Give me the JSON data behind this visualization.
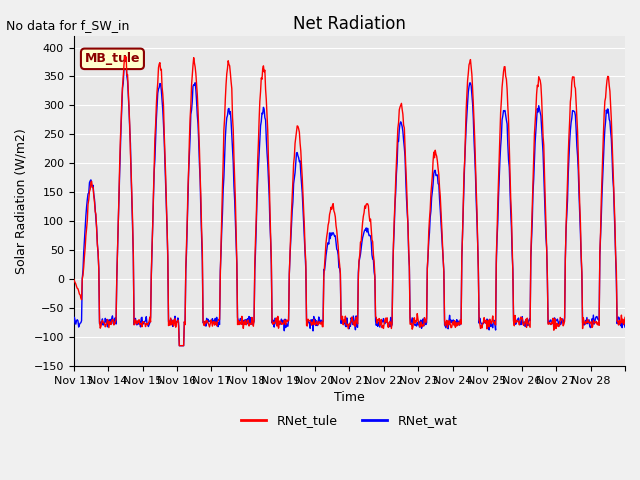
{
  "title": "Net Radiation",
  "subtitle": "No data for f_SW_in",
  "ylabel": "Solar Radiation (W/m2)",
  "xlabel": "Time",
  "ylim": [
    -150,
    420
  ],
  "yticks": [
    -150,
    -100,
    -50,
    0,
    50,
    100,
    150,
    200,
    250,
    300,
    350,
    400
  ],
  "date_start": 13,
  "date_end": 28,
  "xtick_labels": [
    "Nov 13",
    "Nov 14",
    "Nov 15",
    "Nov 16",
    "Nov 17",
    "Nov 18",
    "Nov 19",
    "Nov 20",
    "Nov 21",
    "Nov 22",
    "Nov 23",
    "Nov 24",
    "Nov 25",
    "Nov 26",
    "Nov 27",
    "Nov 28"
  ],
  "color_tule": "#ff0000",
  "color_wat": "#0000ff",
  "bg_color": "#e8e8e8",
  "plot_bg": "#e8e8e8",
  "mb_tule_label": "MB_tule",
  "legend_labels": [
    "RNet_tule",
    "RNet_wat"
  ],
  "line_width": 1.0
}
